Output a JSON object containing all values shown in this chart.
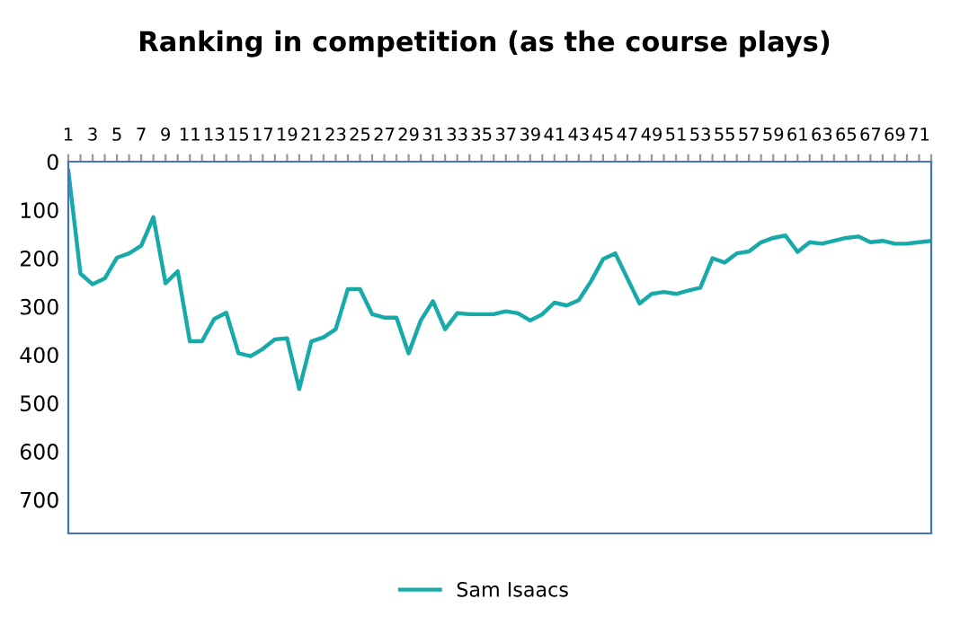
{
  "chart_data": {
    "type": "line",
    "title": "Ranking in competition (as the course plays)",
    "categories": [
      "1",
      null,
      "3",
      null,
      "5",
      null,
      "7",
      null,
      "9",
      null,
      "11",
      null,
      "13",
      null,
      "15",
      null,
      "17",
      null,
      "19",
      null,
      "21",
      null,
      "23",
      null,
      "25",
      null,
      "27",
      null,
      "29",
      null,
      "31",
      null,
      "33",
      null,
      "35",
      null,
      "37",
      null,
      "39",
      null,
      "41",
      null,
      "43",
      null,
      "45",
      null,
      "47",
      null,
      "49",
      null,
      "51",
      null,
      "53",
      null,
      "55",
      null,
      "57",
      null,
      "59",
      null,
      "61",
      null,
      "63",
      null,
      "65",
      null,
      "67",
      null,
      "69",
      null,
      "71",
      null
    ],
    "series": [
      {
        "name": "Sam Isaacs",
        "color": "#17aaa8",
        "values": [
          19,
          232,
          254,
          242,
          199,
          190,
          174,
          115,
          252,
          227,
          372,
          372,
          326,
          313,
          397,
          403,
          388,
          368,
          366,
          471,
          372,
          364,
          347,
          264,
          264,
          316,
          323,
          323,
          397,
          329,
          289,
          347,
          314,
          316,
          316,
          316,
          310,
          314,
          329,
          316,
          292,
          298,
          287,
          248,
          202,
          190,
          242,
          294,
          274,
          270,
          274,
          267,
          261,
          200,
          209,
          190,
          186,
          167,
          158,
          153,
          187,
          167,
          170,
          164,
          158,
          155,
          167,
          164,
          170,
          170,
          167,
          164
        ]
      }
    ],
    "ylim": [
      770,
      0
    ],
    "yticks": [
      0,
      100,
      200,
      300,
      400,
      500,
      600,
      700
    ],
    "grid": false,
    "legend": "bottom",
    "marker": "none",
    "line_style": "solid"
  }
}
